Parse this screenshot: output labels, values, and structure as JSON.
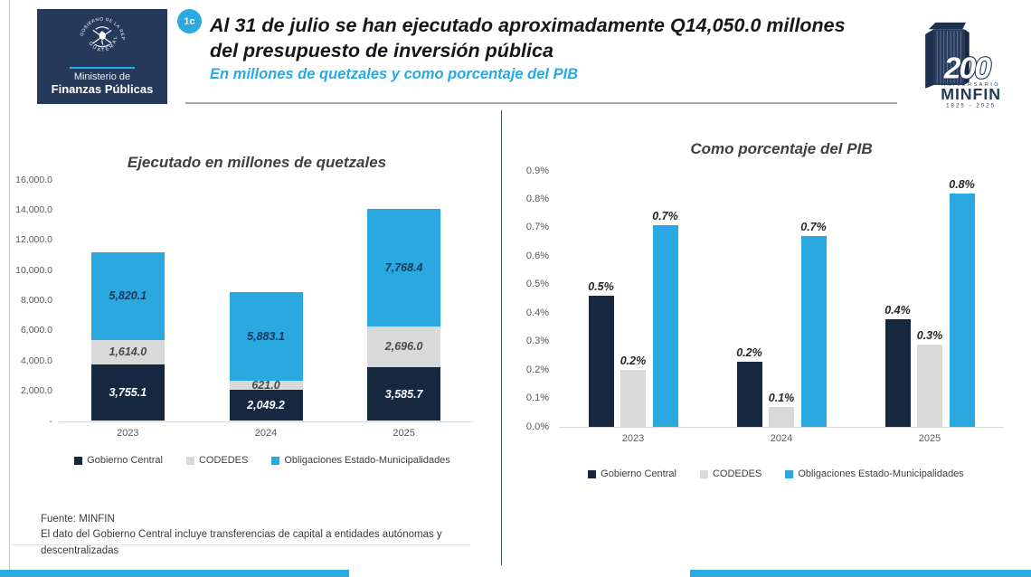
{
  "header": {
    "badge": "1c",
    "title_line1": "Al 31 de julio se han ejecutado aproximadamente Q14,050.0 millones",
    "title_line2": "del presupuesto de inversión pública",
    "subtitle": "En millones de quetzales y como porcentaje del PIB",
    "logo": {
      "arc_top": "GOBIERNO DE LA REPÚBLICA",
      "arc_bottom": "GUATEMALA",
      "ministry_top": "Ministerio de",
      "ministry_bottom": "Finanzas Públicas"
    },
    "anniversary": {
      "number": "200",
      "label": "ANIVERSARIO",
      "org": "MINFIN",
      "years": "1825 - 2025"
    }
  },
  "colors": {
    "navy": "#152840",
    "cyan": "#29a9e0",
    "gray": "#d9d9d9",
    "accent_strip": "#29abe2",
    "logo_navy": "#25395b",
    "axis_text": "#595959"
  },
  "footnotes": [
    "Fuente: MINFIN",
    "El dato del Gobierno Central incluye transferencias de capital a entidades autónomas y descentralizadas"
  ],
  "chart_data": [
    {
      "type": "bar",
      "variant": "stacked",
      "title": "Ejecutado en millones de quetzales",
      "categories": [
        "2023",
        "2024",
        "2025"
      ],
      "series": [
        {
          "name": "Gobierno Central",
          "color": "#152840",
          "label_color": "#ffffff",
          "values": [
            3755.1,
            2049.2,
            3585.7
          ],
          "labels": [
            "3,755.1",
            "2,049.2",
            "3,585.7"
          ]
        },
        {
          "name": "CODEDES",
          "color": "#d9d9d9",
          "label_color": "#4a4a4a",
          "values": [
            1614.0,
            621.0,
            2696.0
          ],
          "labels": [
            "1,614.0",
            "621.0",
            "2,696.0"
          ]
        },
        {
          "name": "Obligaciones Estado-Municipalidades",
          "color": "#29a9e0",
          "label_color": "#17375e",
          "values": [
            5820.1,
            5883.1,
            7768.4
          ],
          "labels": [
            "5,820.1",
            "5,883.1",
            "7,768.4"
          ]
        }
      ],
      "totals": [
        11189.2,
        8553.3,
        14050.1
      ],
      "xlabel": "",
      "ylabel": "",
      "ylim": [
        0,
        16000
      ],
      "ytick_step": 2000,
      "ytick_labels": [
        "-",
        "2,000.0",
        "4,000.0",
        "6,000.0",
        "8,000.0",
        "10,000.0",
        "12,000.0",
        "14,000.0",
        "16,000.0"
      ],
      "grid": false,
      "legend_position": "bottom"
    },
    {
      "type": "bar",
      "variant": "grouped",
      "title": "Como porcentaje del PIB",
      "categories": [
        "2023",
        "2024",
        "2025"
      ],
      "series": [
        {
          "name": "Gobierno Central",
          "color": "#152840",
          "values": [
            0.46,
            0.23,
            0.38
          ],
          "labels": [
            "0.5%",
            "0.2%",
            "0.4%"
          ]
        },
        {
          "name": "CODEDES",
          "color": "#d9d9d9",
          "values": [
            0.2,
            0.07,
            0.29
          ],
          "labels": [
            "0.2%",
            "0.1%",
            "0.3%"
          ]
        },
        {
          "name": "Obligaciones Estado-Municipalidades",
          "color": "#29a9e0",
          "values": [
            0.71,
            0.67,
            0.82
          ],
          "labels": [
            "0.7%",
            "0.7%",
            "0.8%"
          ]
        }
      ],
      "xlabel": "",
      "ylabel": "",
      "ylim": [
        0,
        0.9
      ],
      "ytick_step": 0.1,
      "ytick_labels": [
        "0.0%",
        "0.1%",
        "0.2%",
        "0.3%",
        "0.4%",
        "0.5%",
        "0.6%",
        "0.7%",
        "0.8%",
        "0.9%"
      ],
      "grid": false,
      "legend_position": "bottom"
    }
  ]
}
